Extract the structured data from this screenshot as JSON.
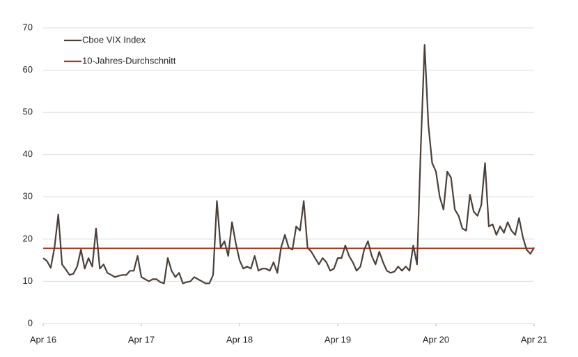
{
  "chart_data": {
    "type": "line",
    "x": [
      0,
      1,
      2,
      3,
      4,
      5,
      6,
      7,
      8,
      9,
      10,
      11,
      12,
      13,
      14,
      15,
      16,
      17,
      18,
      19,
      20,
      21,
      22,
      23,
      24,
      25,
      26,
      27,
      28,
      29,
      30,
      31,
      32,
      33,
      34,
      35,
      36,
      37,
      38,
      39,
      40,
      41,
      42,
      43,
      44,
      45,
      46,
      47,
      48,
      49,
      50,
      51,
      52,
      53,
      54,
      55,
      56,
      57,
      58,
      59,
      60,
      61,
      62,
      63,
      64,
      65,
      66,
      67,
      68,
      69,
      70,
      71,
      72,
      73,
      74,
      75,
      76,
      77,
      78,
      79,
      80,
      81,
      82,
      83,
      84,
      85,
      86,
      87,
      88,
      89,
      90,
      91,
      92,
      93,
      94,
      95,
      96,
      97,
      98,
      99,
      100,
      101,
      102,
      103,
      104,
      105,
      106,
      107,
      108,
      109,
      110,
      111,
      112,
      113,
      114,
      115,
      116,
      117,
      118,
      119,
      120,
      121,
      122,
      123,
      124,
      125,
      126,
      127,
      128,
      129,
      130
    ],
    "series": [
      {
        "name": "Cboe VIX Index",
        "color": "#4b4039",
        "values": [
          15.5,
          14.8,
          13.2,
          18,
          25.8,
          14,
          12.8,
          11.5,
          11.8,
          13.5,
          17.5,
          13,
          15.5,
          13.5,
          22.5,
          13,
          14,
          12,
          11.5,
          11,
          11.3,
          11.5,
          11.5,
          12.5,
          12.5,
          16,
          11,
          10.5,
          10,
          10.5,
          10.5,
          9.8,
          9.5,
          15.5,
          12.5,
          11,
          12,
          9.5,
          9.8,
          10,
          11,
          10.5,
          10,
          9.5,
          9.5,
          11.5,
          29,
          18,
          19.5,
          16,
          24,
          19,
          15,
          13,
          13.5,
          13,
          16,
          12.5,
          13,
          13,
          12.5,
          14.5,
          12,
          18,
          21,
          18,
          17.5,
          23,
          22,
          29,
          18,
          17,
          15.5,
          14,
          15.5,
          14.5,
          12.5,
          13,
          15.5,
          15.5,
          18.5,
          16,
          14.5,
          12.5,
          13.5,
          17.5,
          19.5,
          16,
          14,
          17,
          14.5,
          12.5,
          12,
          12.3,
          13.5,
          12.5,
          13.5,
          12.5,
          18.5,
          14,
          42,
          66,
          47,
          38,
          36,
          30,
          27,
          36,
          34.5,
          27,
          25.5,
          22.5,
          22,
          30.5,
          26.5,
          25.5,
          28,
          38,
          23,
          23.5,
          21,
          23,
          21.5,
          24,
          22,
          21,
          25,
          20.5,
          17.5,
          16.5,
          18
        ]
      }
    ],
    "reference_line": {
      "name": "10-Jahres-Durchschnitt",
      "value": 17.8,
      "color": "#a53a2b"
    },
    "xlim": [
      0,
      130
    ],
    "xticks": [
      {
        "value": 0,
        "label": "Apr 16"
      },
      {
        "value": 26,
        "label": "Apr 17"
      },
      {
        "value": 52,
        "label": "Apr 18"
      },
      {
        "value": 78,
        "label": "Apr 19"
      },
      {
        "value": 104,
        "label": "Apr 20"
      },
      {
        "value": 130,
        "label": "Apr 21"
      }
    ],
    "ylim": [
      0,
      70
    ],
    "yticks": [
      0,
      10,
      20,
      30,
      40,
      50,
      60,
      70
    ],
    "grid": true,
    "legend": "top-left"
  }
}
